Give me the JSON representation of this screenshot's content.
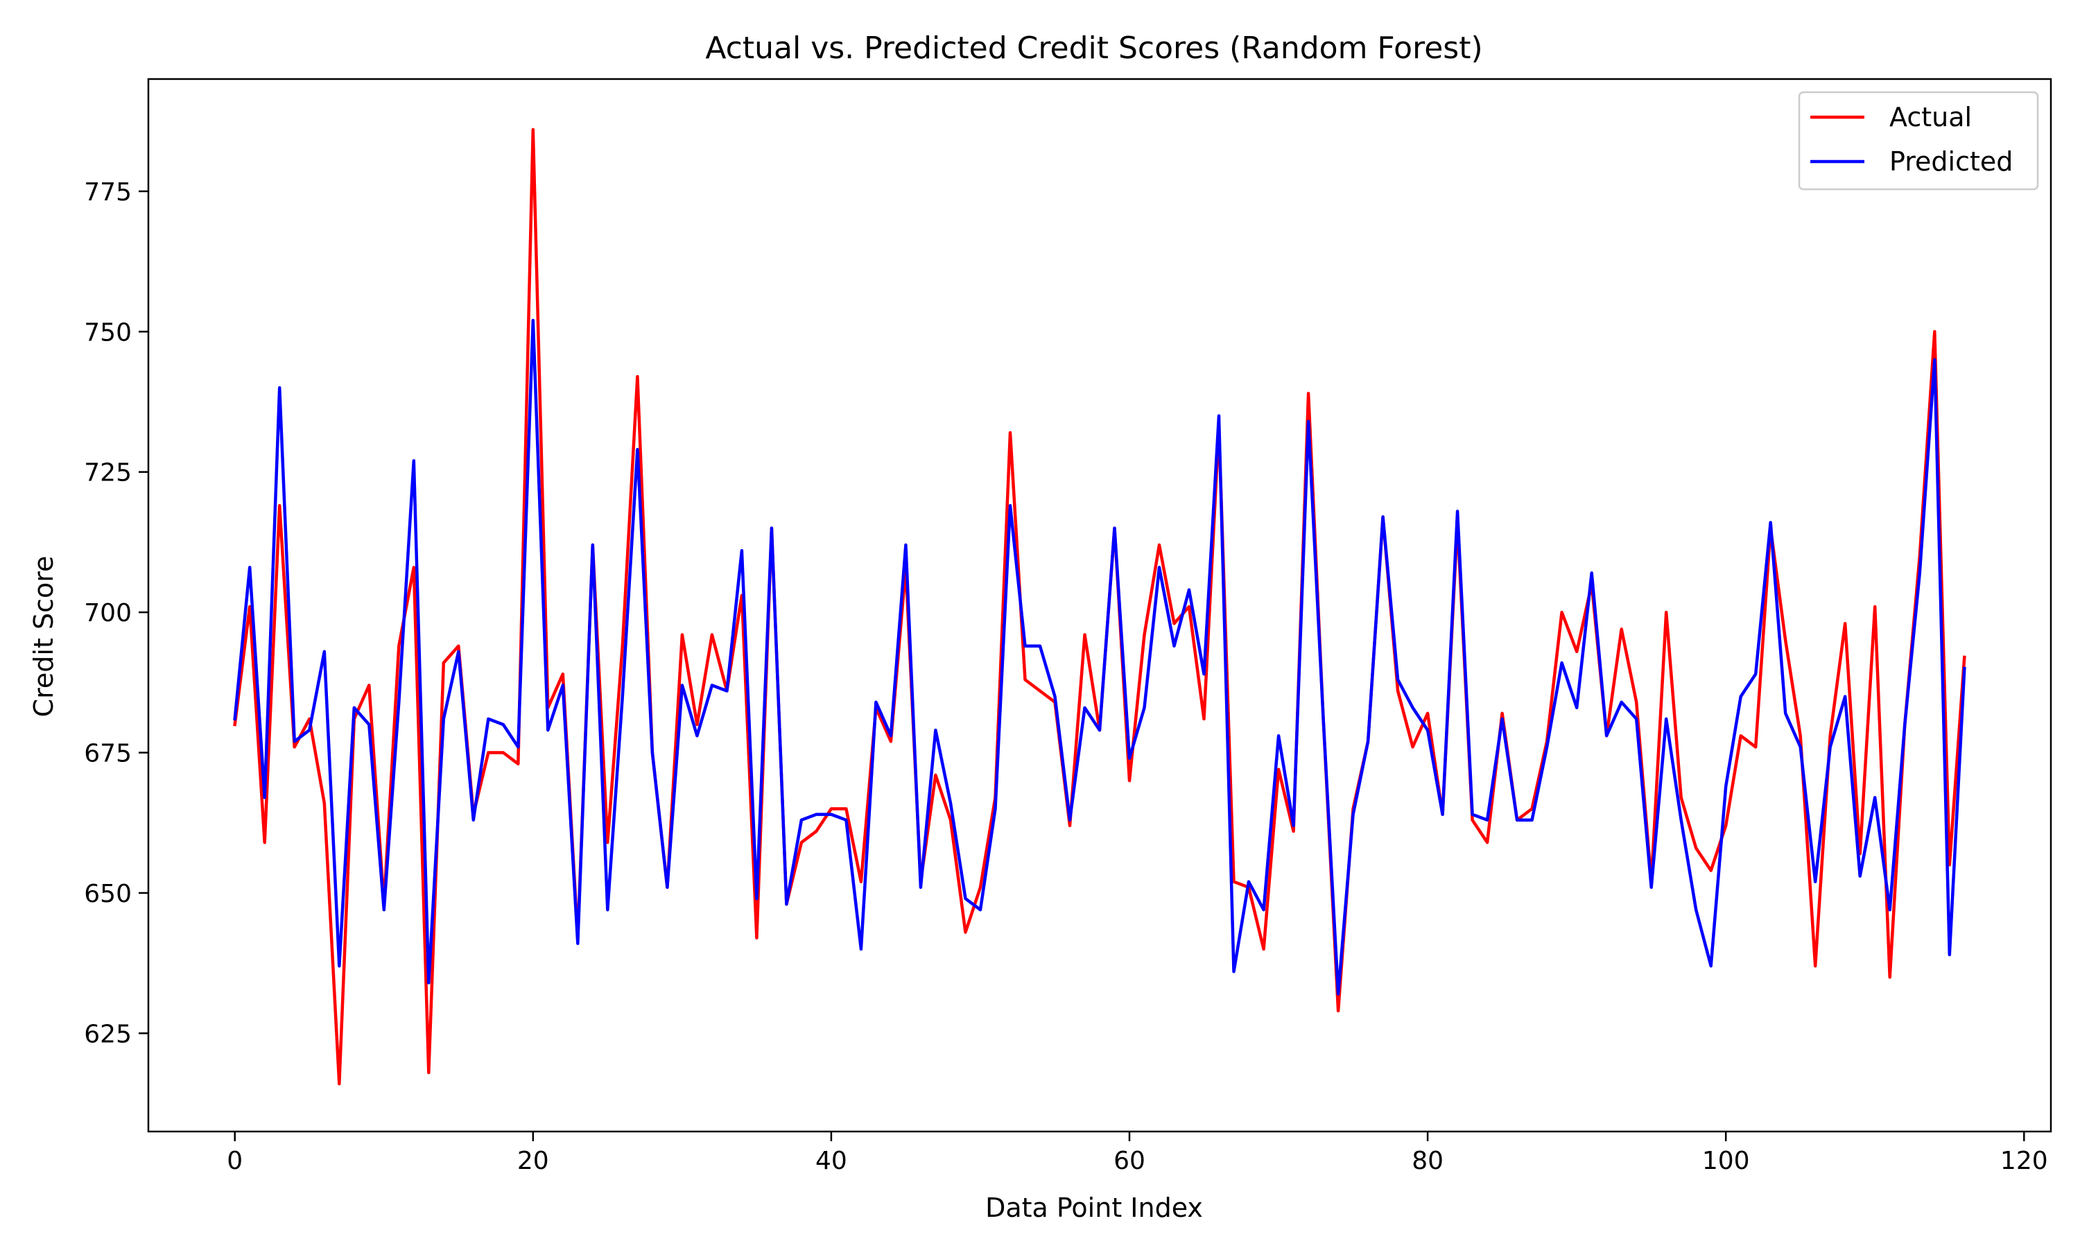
{
  "chart_data": {
    "type": "line",
    "title": "Actual vs. Predicted Credit Scores (Random Forest)",
    "xlabel": "Data Point Index",
    "ylabel": "Credit Score",
    "xlim": [
      -5.8,
      121.8
    ],
    "ylim": [
      607.5,
      795
    ],
    "xticks": [
      0,
      20,
      40,
      60,
      80,
      100,
      120
    ],
    "yticks": [
      625,
      650,
      675,
      700,
      725,
      750,
      775
    ],
    "grid": false,
    "legend_position": "top-right",
    "series": [
      {
        "name": "Actual",
        "color": "#ff0000",
        "values": [
          680,
          701,
          659,
          719,
          676,
          681,
          666,
          616,
          681,
          687,
          648,
          694,
          708,
          618,
          691,
          694,
          664,
          675,
          675,
          673,
          786,
          683,
          689,
          642,
          712,
          659,
          694,
          742,
          675,
          651,
          696,
          680,
          696,
          686,
          703,
          642,
          715,
          648,
          659,
          661,
          665,
          665,
          652,
          683,
          677,
          708,
          652,
          671,
          663,
          643,
          651,
          667,
          732,
          688,
          686,
          684,
          662,
          696,
          679,
          715,
          670,
          696,
          712,
          698,
          701,
          681,
          733,
          652,
          651,
          640,
          672,
          661,
          739,
          681,
          629,
          665,
          677,
          717,
          686,
          676,
          682,
          664,
          716,
          663,
          659,
          682,
          663,
          665,
          677,
          700,
          693,
          705,
          678,
          697,
          684,
          652,
          700,
          667,
          658,
          654,
          662,
          678,
          676,
          715,
          695,
          678,
          637,
          678,
          698,
          657,
          701,
          635,
          680,
          710,
          750,
          655,
          692
        ]
      },
      {
        "name": "Predicted",
        "color": "#0000ff",
        "values": [
          681,
          708,
          667,
          740,
          677,
          679,
          693,
          637,
          683,
          680,
          647,
          684,
          727,
          634,
          681,
          693,
          663,
          681,
          680,
          676,
          752,
          679,
          687,
          641,
          712,
          647,
          685,
          729,
          675,
          651,
          687,
          678,
          687,
          686,
          711,
          649,
          715,
          648,
          663,
          664,
          664,
          663,
          640,
          684,
          678,
          712,
          651,
          679,
          666,
          649,
          647,
          665,
          719,
          694,
          694,
          685,
          663,
          683,
          679,
          715,
          674,
          683,
          708,
          694,
          704,
          689,
          735,
          636,
          652,
          647,
          678,
          662,
          734,
          681,
          632,
          664,
          677,
          717,
          688,
          683,
          679,
          664,
          718,
          664,
          663,
          681,
          663,
          663,
          676,
          691,
          683,
          707,
          678,
          684,
          681,
          651,
          681,
          663,
          647,
          637,
          669,
          685,
          689,
          716,
          682,
          676,
          652,
          676,
          685,
          653,
          667,
          647,
          680,
          707,
          745,
          639,
          690
        ]
      }
    ]
  }
}
